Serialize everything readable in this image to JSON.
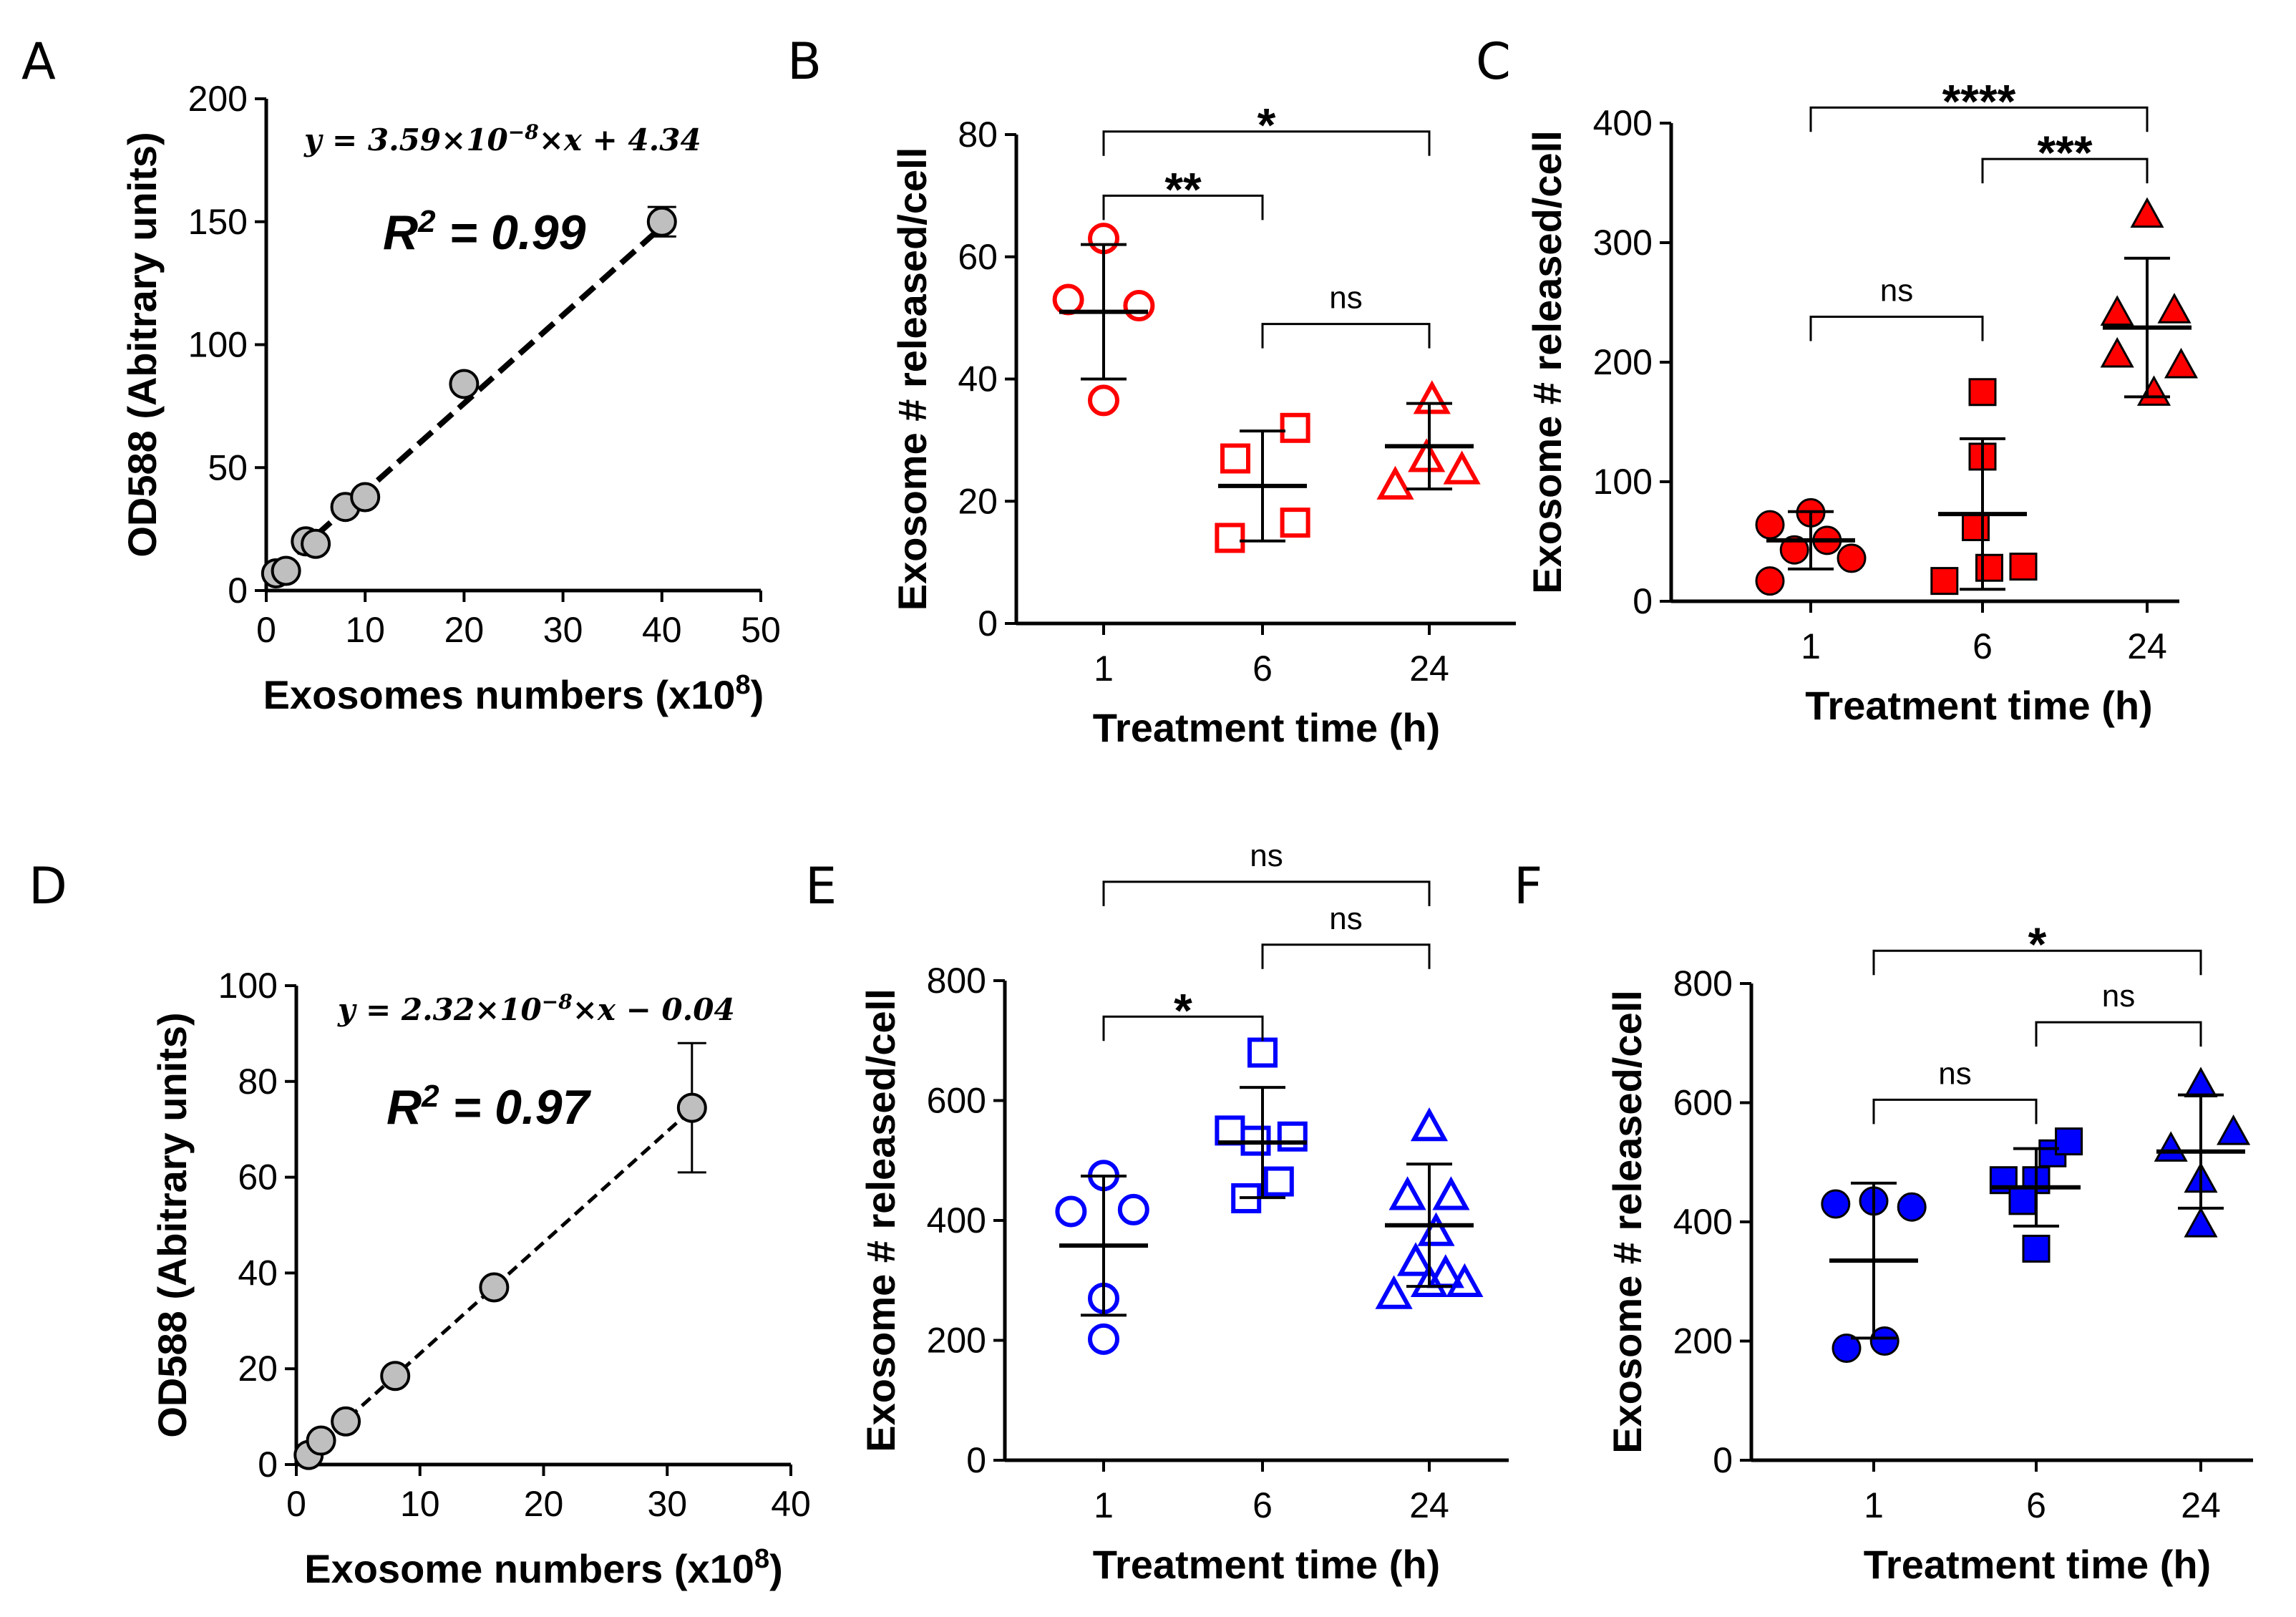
{
  "chart_data": [
    {
      "panel": "A",
      "type": "scatter",
      "xlabel": "Exosomes numbers  (x10",
      "xlabel_sup": "8",
      "xlabel_close": ")",
      "ylabel": "OD588 (Abitrary units)",
      "xlim": [
        0,
        50
      ],
      "ylim": [
        0,
        200
      ],
      "xticks": [
        "0",
        "10",
        "20",
        "30",
        "40",
        "50"
      ],
      "yticks": [
        "0",
        "50",
        "100",
        "150",
        "200"
      ],
      "x": [
        1,
        2,
        4,
        5,
        8,
        10,
        20,
        40
      ],
      "y": [
        7,
        8,
        20,
        19,
        34,
        38,
        84,
        150
      ],
      "error": [
        0,
        0,
        0,
        0,
        0,
        0,
        0,
        6
      ],
      "fit": {
        "slope": 3.59,
        "intercept": 4.34,
        "x_range": [
          1,
          40
        ]
      },
      "equation": {
        "lhs": "y = 3.59×10",
        "exp": "−8",
        "rhs": "×x + 4.34"
      },
      "r2": {
        "label": "R",
        "sup": "2",
        "value": " = 0.99"
      },
      "marker_color": "#bfbfbf"
    },
    {
      "panel": "B",
      "type": "scatter",
      "xlabel": "Treatment time (h)",
      "ylabel": "Exosome # released/cell",
      "ylim": [
        0,
        80
      ],
      "yticks": [
        "0",
        "20",
        "40",
        "60",
        "80"
      ],
      "categories": [
        "1",
        "6",
        "24"
      ],
      "markers": [
        "circle",
        "square",
        "triangle"
      ],
      "filled": false,
      "color": "#ff0000",
      "points": [
        [
          {
            "x": -0.26,
            "y": 53
          },
          {
            "x": 0.0,
            "y": 63
          },
          {
            "x": 0.26,
            "y": 52
          },
          {
            "x": 0.0,
            "y": 36.5
          }
        ],
        [
          {
            "x": -0.24,
            "y": 14
          },
          {
            "x": 0.24,
            "y": 32
          },
          {
            "x": 0.24,
            "y": 16.5
          },
          {
            "x": -0.2,
            "y": 27
          }
        ],
        [
          {
            "x": -0.25,
            "y": 22.5
          },
          {
            "x": -0.02,
            "y": 27
          },
          {
            "x": 0.02,
            "y": 36.5
          },
          {
            "x": 0.24,
            "y": 25
          }
        ]
      ],
      "means": [
        51,
        22.5,
        29
      ],
      "sds": [
        11,
        9,
        7
      ],
      "brackets": [
        {
          "from": 0,
          "to": 1,
          "level": 70,
          "label": "**"
        },
        {
          "from": 0,
          "to": 2,
          "level": 80.5,
          "label": "*"
        },
        {
          "from": 1,
          "to": 2,
          "level": 49,
          "label": "ns"
        }
      ]
    },
    {
      "panel": "C",
      "type": "scatter",
      "xlabel": "Treatment time (h)",
      "ylabel": "Exosome # released/cell",
      "ylim": [
        0,
        400
      ],
      "yticks": [
        "0",
        "100",
        "200",
        "300",
        "400"
      ],
      "categories": [
        "1",
        "6",
        "24"
      ],
      "markers": [
        "circle",
        "square",
        "triangle"
      ],
      "filled": true,
      "color": "#ff0000",
      "points": [
        [
          {
            "x": -0.3,
            "y": 17
          },
          {
            "x": -0.3,
            "y": 64
          },
          {
            "x": -0.12,
            "y": 43
          },
          {
            "x": 0.0,
            "y": 74
          },
          {
            "x": 0.12,
            "y": 51
          },
          {
            "x": 0.3,
            "y": 36
          }
        ],
        [
          {
            "x": -0.28,
            "y": 17
          },
          {
            "x": -0.05,
            "y": 62
          },
          {
            "x": 0.0,
            "y": 121
          },
          {
            "x": 0.0,
            "y": 175
          },
          {
            "x": 0.05,
            "y": 28
          },
          {
            "x": 0.3,
            "y": 29
          }
        ],
        [
          {
            "x": -0.22,
            "y": 241
          },
          {
            "x": -0.22,
            "y": 206
          },
          {
            "x": 0.0,
            "y": 323
          },
          {
            "x": 0.05,
            "y": 174
          },
          {
            "x": 0.2,
            "y": 243
          },
          {
            "x": 0.25,
            "y": 197
          }
        ]
      ],
      "means": [
        51,
        73,
        229
      ],
      "sds": [
        24,
        63,
        58
      ],
      "brackets": [
        {
          "from": 0,
          "to": 2,
          "level": 413,
          "label": "****"
        },
        {
          "from": 1,
          "to": 2,
          "level": 370,
          "label": "***"
        },
        {
          "from": 0,
          "to": 1,
          "level": 238,
          "label": "ns"
        }
      ]
    },
    {
      "panel": "D",
      "type": "scatter",
      "xlabel": "Exosome numbers (x10",
      "xlabel_sup": "8",
      "xlabel_close": ")",
      "ylabel": "OD588 (Abitrary units)",
      "xlim": [
        0,
        40
      ],
      "ylim": [
        0,
        100
      ],
      "xticks": [
        "0",
        "10",
        "20",
        "30",
        "40"
      ],
      "yticks": [
        "0",
        "20",
        "40",
        "60",
        "80",
        "100"
      ],
      "x": [
        1,
        2,
        4,
        8,
        16,
        32
      ],
      "y": [
        2,
        5,
        9,
        18.5,
        37,
        74.5
      ],
      "error": [
        0,
        0,
        0,
        0,
        0,
        13.5
      ],
      "fit": {
        "slope": 2.32,
        "intercept": -0.04,
        "x_range": [
          1,
          32
        ]
      },
      "equation": {
        "lhs": "y = 2.32×10",
        "exp": "−8",
        "rhs": "×x − 0.04"
      },
      "r2": {
        "label": "R",
        "sup": "2",
        "value": " = 0.97"
      },
      "marker_color": "#bfbfbf"
    },
    {
      "panel": "E",
      "type": "scatter",
      "xlabel": "Treatment time (h)",
      "ylabel": "Exosome # released/cell",
      "ylim": [
        0,
        800
      ],
      "yticks": [
        "0",
        "200",
        "400",
        "600",
        "800"
      ],
      "categories": [
        "1",
        "6",
        "24"
      ],
      "markers": [
        "circle",
        "square",
        "triangle"
      ],
      "filled": false,
      "color": "#0000ff",
      "points": [
        [
          {
            "x": -0.24,
            "y": 415
          },
          {
            "x": 0.0,
            "y": 475
          },
          {
            "x": 0.22,
            "y": 418
          },
          {
            "x": 0.0,
            "y": 270
          },
          {
            "x": 0.0,
            "y": 202
          }
        ],
        [
          {
            "x": -0.24,
            "y": 550
          },
          {
            "x": 0.0,
            "y": 680
          },
          {
            "x": -0.05,
            "y": 533
          },
          {
            "x": 0.22,
            "y": 540
          },
          {
            "x": 0.12,
            "y": 465
          },
          {
            "x": -0.12,
            "y": 437
          }
        ],
        [
          {
            "x": 0.0,
            "y": 555
          },
          {
            "x": -0.16,
            "y": 440
          },
          {
            "x": 0.16,
            "y": 440
          },
          {
            "x": 0.05,
            "y": 380
          },
          {
            "x": -0.1,
            "y": 330
          },
          {
            "x": 0.12,
            "y": 310
          },
          {
            "x": -0.26,
            "y": 275
          },
          {
            "x": 0.0,
            "y": 295
          },
          {
            "x": 0.26,
            "y": 295
          }
        ]
      ],
      "means": [
        358,
        530,
        392
      ],
      "sds": [
        116,
        92,
        102
      ],
      "brackets": [
        {
          "from": 0,
          "to": 2,
          "level": 965,
          "label": "ns"
        },
        {
          "from": 1,
          "to": 2,
          "level": 860,
          "label": "ns"
        },
        {
          "from": 0,
          "to": 1,
          "level": 740,
          "label": "*"
        }
      ]
    },
    {
      "panel": "F",
      "type": "scatter",
      "xlabel": "Treatment time (h)",
      "ylabel": "Exosome # released/cell",
      "ylim": [
        0,
        800
      ],
      "yticks": [
        "0",
        "200",
        "400",
        "600",
        "800"
      ],
      "categories": [
        "1",
        "6",
        "24"
      ],
      "markers": [
        "circle",
        "square",
        "triangle"
      ],
      "filled": true,
      "color": "#0000ff",
      "points": [
        [
          {
            "x": -0.28,
            "y": 430
          },
          {
            "x": 0.0,
            "y": 435
          },
          {
            "x": 0.28,
            "y": 425
          },
          {
            "x": -0.2,
            "y": 188
          },
          {
            "x": 0.08,
            "y": 200
          }
        ],
        [
          {
            "x": -0.24,
            "y": 470
          },
          {
            "x": 0.0,
            "y": 470
          },
          {
            "x": 0.12,
            "y": 515
          },
          {
            "x": 0.24,
            "y": 535
          },
          {
            "x": -0.1,
            "y": 435
          },
          {
            "x": 0.0,
            "y": 355
          }
        ],
        [
          {
            "x": -0.22,
            "y": 522
          },
          {
            "x": 0.0,
            "y": 630
          },
          {
            "x": 0.24,
            "y": 550
          },
          {
            "x": 0.0,
            "y": 470
          },
          {
            "x": 0.0,
            "y": 395
          }
        ]
      ],
      "means": [
        335,
        458,
        518
      ],
      "sds": [
        130,
        65,
        95
      ],
      "brackets": [
        {
          "from": 0,
          "to": 2,
          "level": 855,
          "label": "*"
        },
        {
          "from": 1,
          "to": 2,
          "level": 735,
          "label": "ns"
        },
        {
          "from": 0,
          "to": 1,
          "level": 605,
          "label": "ns"
        }
      ]
    }
  ]
}
